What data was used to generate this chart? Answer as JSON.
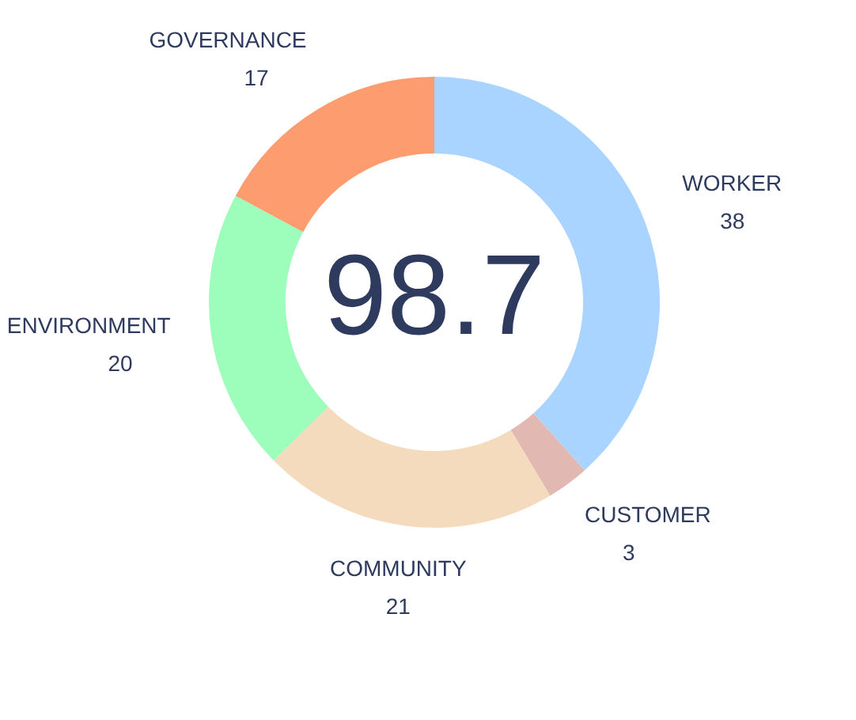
{
  "chart_data": {
    "type": "donut",
    "categories": [
      "WORKER",
      "CUSTOMER",
      "COMMUNITY",
      "ENVIRONMENT",
      "GOVERNANCE"
    ],
    "values": [
      38,
      3,
      21,
      20,
      17
    ],
    "data_labels": true,
    "colors": [
      "#a8d4ff",
      "#e2b8b2",
      "#f5dbbe",
      "#9dfdbb",
      "#fd9d6f"
    ],
    "annotations": [
      "98.7"
    ],
    "legend": false
  }
}
